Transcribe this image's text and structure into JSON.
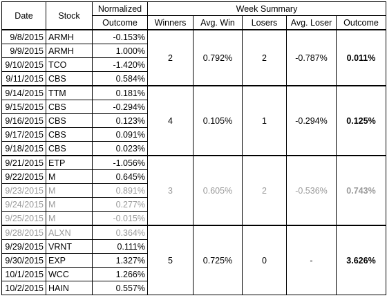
{
  "headers": {
    "date": "Date",
    "stock": "Stock",
    "outcome_line1": "Normalized",
    "outcome_line2": "Outcome",
    "week_summary": "Week Summary",
    "winners": "Winners",
    "avg_win": "Avg. Win",
    "losers": "Losers",
    "avg_loser": "Avg. Loser",
    "outcome": "Outcome"
  },
  "weeks": [
    {
      "rows": [
        {
          "date": "9/8/2015",
          "stock": "ARMH",
          "outcome": "-0.153%"
        },
        {
          "date": "9/9/2015",
          "stock": "ARMH",
          "outcome": "1.000%"
        },
        {
          "date": "9/10/2015",
          "stock": "TCO",
          "outcome": "-1.420%"
        },
        {
          "date": "9/11/2015",
          "stock": "CBS",
          "outcome": "0.584%"
        }
      ],
      "summary": {
        "winners": "2",
        "avg_win": "0.792%",
        "losers": "2",
        "avg_loser": "-0.787%",
        "outcome": "0.011%"
      }
    },
    {
      "rows": [
        {
          "date": "9/14/2015",
          "stock": "TTM",
          "outcome": "0.181%"
        },
        {
          "date": "9/15/2015",
          "stock": "CBS",
          "outcome": "-0.294%"
        },
        {
          "date": "9/16/2015",
          "stock": "CBS",
          "outcome": "0.123%"
        },
        {
          "date": "9/17/2015",
          "stock": "CBS",
          "outcome": "0.091%"
        },
        {
          "date": "9/18/2015",
          "stock": "CBS",
          "outcome": "0.023%"
        }
      ],
      "summary": {
        "winners": "4",
        "avg_win": "0.105%",
        "losers": "1",
        "avg_loser": "-0.294%",
        "outcome": "0.125%"
      }
    },
    {
      "rows": [
        {
          "date": "9/21/2015",
          "stock": "ETP",
          "outcome": "-1.056%"
        },
        {
          "date": "9/22/2015",
          "stock": "M",
          "outcome": "0.645%"
        },
        {
          "date": "9/23/2015",
          "stock": "M",
          "outcome": "0.891%"
        },
        {
          "date": "9/24/2015",
          "stock": "M",
          "outcome": "0.277%"
        },
        {
          "date": "9/25/2015",
          "stock": "M",
          "outcome": "-0.015%"
        }
      ],
      "summary": {
        "winners": "3",
        "avg_win": "0.605%",
        "losers": "2",
        "avg_loser": "-0.536%",
        "outcome": "0.743%"
      }
    },
    {
      "rows": [
        {
          "date": "9/28/2015",
          "stock": "ALXN",
          "outcome": "0.364%"
        },
        {
          "date": "9/29/2015",
          "stock": "VRNT",
          "outcome": "0.111%"
        },
        {
          "date": "9/30/2015",
          "stock": "EXP",
          "outcome": "1.327%"
        },
        {
          "date": "10/1/2015",
          "stock": "WCC",
          "outcome": "1.266%"
        },
        {
          "date": "10/2/2015",
          "stock": "HAIN",
          "outcome": "0.557%"
        }
      ],
      "summary": {
        "winners": "5",
        "avg_win": "0.725%",
        "losers": "0",
        "avg_loser": "-",
        "outcome": "3.626%"
      }
    }
  ]
}
